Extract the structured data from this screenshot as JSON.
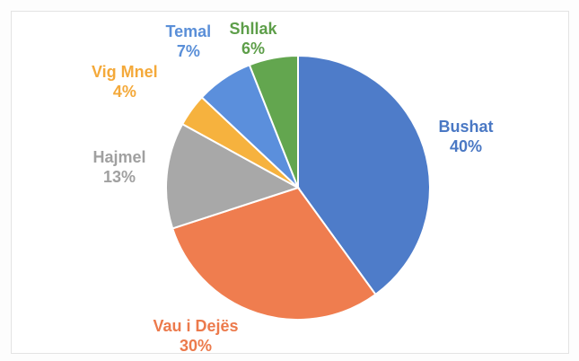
{
  "chart_data": {
    "type": "pie",
    "title": "",
    "start_angle_deg": 0,
    "direction": "clockwise",
    "slices": [
      {
        "name": "Bushat",
        "value": 40,
        "label": "40%",
        "color": "#4e7cc9"
      },
      {
        "name": "Vau i Dejës",
        "value": 30,
        "label": "30%",
        "color": "#ef7d4f"
      },
      {
        "name": "Hajmel",
        "value": 13,
        "label": "13%",
        "color": "#a8a8a8"
      },
      {
        "name": "Vig Mnel",
        "value": 4,
        "label": "4%",
        "color": "#f6b23e"
      },
      {
        "name": "Temal",
        "value": 7,
        "label": "7%",
        "color": "#5b8fdc"
      },
      {
        "name": "Shllak",
        "value": 6,
        "label": "6%",
        "color": "#63a64f"
      }
    ],
    "label_colors": {
      "Bushat": "#4a78c4",
      "Vau i Dejës": "#ec7a4c",
      "Hajmel": "#a0a0a0",
      "Vig Mnel": "#f4a93a",
      "Temal": "#5a8fd8",
      "Shllak": "#5d9e49"
    }
  }
}
